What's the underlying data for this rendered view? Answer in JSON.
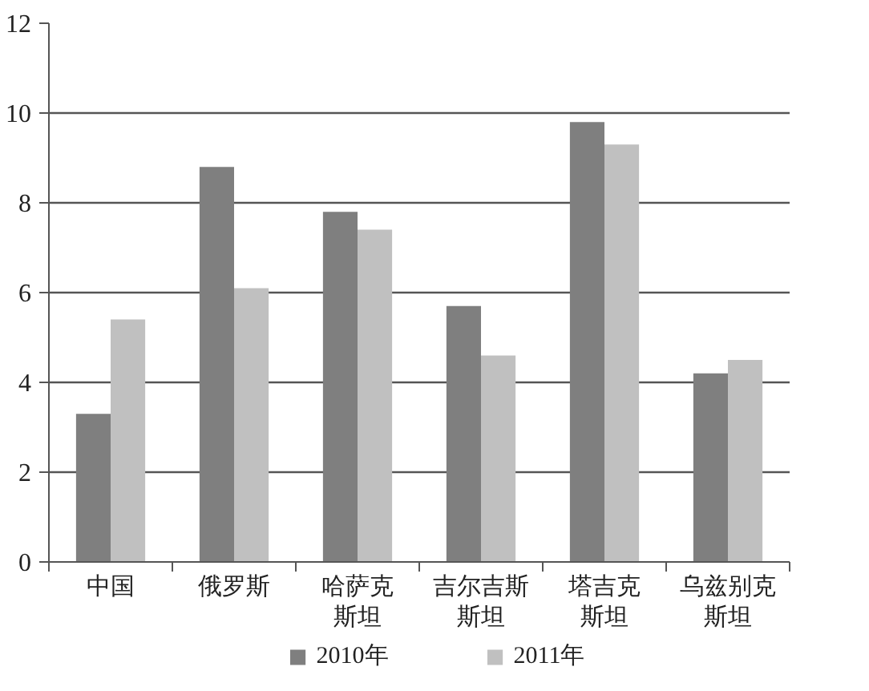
{
  "chart_data": {
    "type": "bar",
    "categories": [
      "中国",
      "俄罗斯",
      "哈萨克斯坦",
      "吉尔吉斯斯坦",
      "塔吉克斯坦",
      "乌兹别克斯坦"
    ],
    "series": [
      {
        "name": "2010年",
        "color": "#7f7f7f",
        "values": [
          3.3,
          8.8,
          7.8,
          5.7,
          9.8,
          4.2
        ]
      },
      {
        "name": "2011年",
        "color": "#c0c0c0",
        "values": [
          5.4,
          6.1,
          7.4,
          4.6,
          9.3,
          4.5
        ]
      }
    ],
    "ylim": [
      0,
      12
    ],
    "yticks": [
      0,
      2,
      4,
      6,
      8,
      10,
      12
    ],
    "grid": "y",
    "legend": "bottom"
  }
}
